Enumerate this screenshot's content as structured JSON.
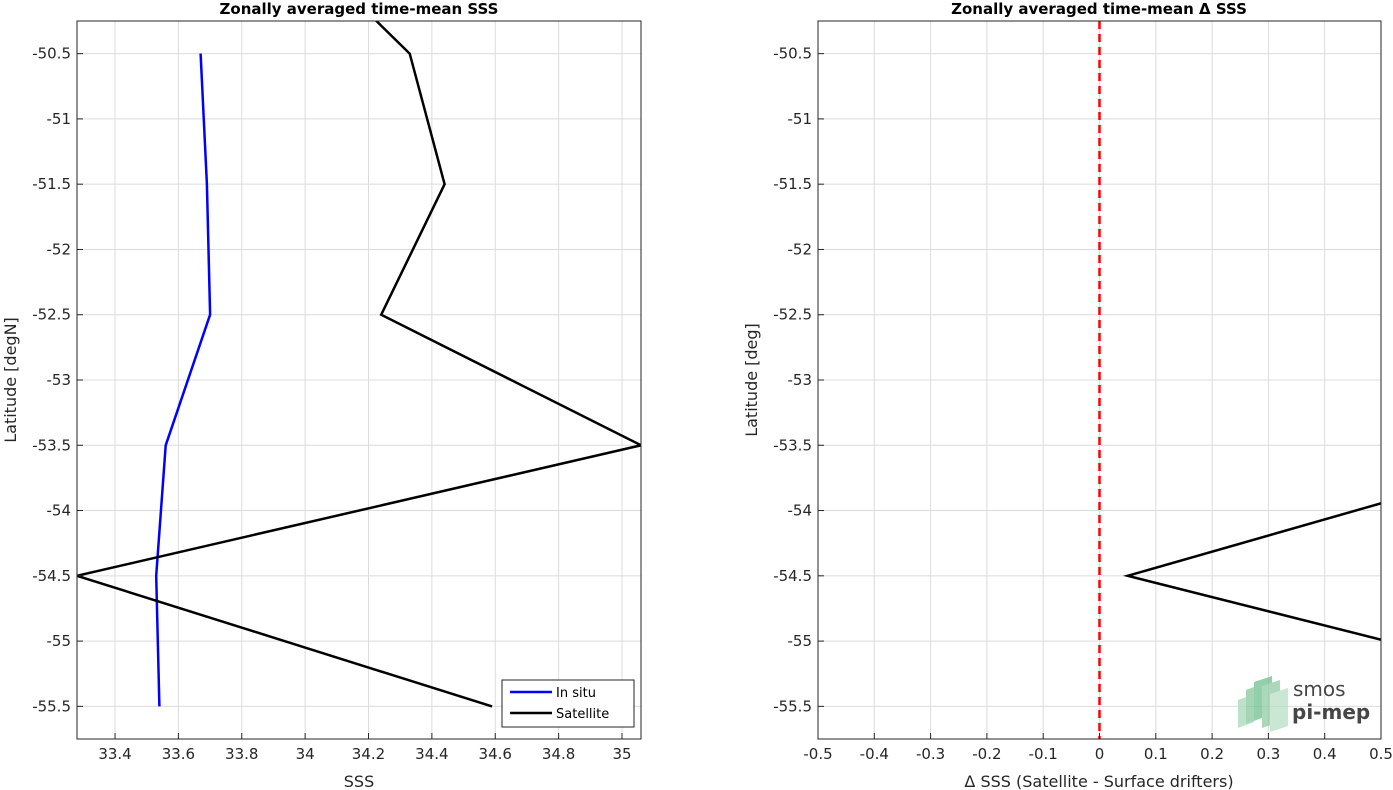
{
  "chart_data": [
    {
      "type": "line",
      "title": "Zonally averaged time-mean SSS",
      "xlabel": "SSS",
      "ylabel": "Latitude [degN]",
      "xlim": [
        33.28,
        35.06
      ],
      "ylim": [
        -55.75,
        -50.25
      ],
      "xticks": [
        33.4,
        33.6,
        33.8,
        34,
        34.2,
        34.4,
        34.6,
        34.8,
        35
      ],
      "xtick_labels": [
        "33.4",
        "33.6",
        "33.8",
        "34",
        "34.2",
        "34.4",
        "34.6",
        "34.8",
        "35"
      ],
      "yticks": [
        -50.5,
        -51,
        -51.5,
        -52,
        -52.5,
        -53,
        -53.5,
        -54,
        -54.5,
        -55,
        -55.5
      ],
      "ytick_labels": [
        "-50.5",
        "-51",
        "-51.5",
        "-52",
        "-52.5",
        "-53",
        "-53.5",
        "-54",
        "-54.5",
        "-55",
        "-55.5"
      ],
      "grid": true,
      "legend_position": "bottom-right",
      "series": [
        {
          "name": "In situ",
          "color": "#0000ff",
          "points": [
            {
              "x": 33.67,
              "y": -50.5
            },
            {
              "x": 33.69,
              "y": -51.5
            },
            {
              "x": 33.7,
              "y": -52.5
            },
            {
              "x": 33.56,
              "y": -53.5
            },
            {
              "x": 33.53,
              "y": -54.5
            },
            {
              "x": 33.54,
              "y": -55.5
            }
          ]
        },
        {
          "name": "Satellite",
          "color": "#000000",
          "points": [
            {
              "x": 34.12,
              "y": -50.0
            },
            {
              "x": 34.33,
              "y": -50.5
            },
            {
              "x": 34.44,
              "y": -51.5
            },
            {
              "x": 34.24,
              "y": -52.5
            },
            {
              "x": 35.06,
              "y": -53.5
            },
            {
              "x": 33.28,
              "y": -54.5
            },
            {
              "x": 34.59,
              "y": -55.5
            }
          ]
        }
      ]
    },
    {
      "type": "line",
      "title": "Zonally averaged time-mean Δ SSS",
      "xlabel": "Δ SSS (Satellite - Surface drifters)",
      "ylabel": "Latitude [deg]",
      "xlim": [
        -0.5,
        0.5
      ],
      "ylim": [
        -55.75,
        -50.25
      ],
      "xticks": [
        -0.5,
        -0.4,
        -0.3,
        -0.2,
        -0.1,
        0,
        0.1,
        0.2,
        0.3,
        0.4,
        0.5
      ],
      "xtick_labels": [
        "-0.5",
        "-0.4",
        "-0.3",
        "-0.2",
        "-0.1",
        "0",
        "0.1",
        "0.2",
        "0.3",
        "0.4",
        "0.5"
      ],
      "yticks": [
        -50.5,
        -51,
        -51.5,
        -52,
        -52.5,
        -53,
        -53.5,
        -54,
        -54.5,
        -55,
        -55.5
      ],
      "ytick_labels": [
        "-50.5",
        "-51",
        "-51.5",
        "-52",
        "-52.5",
        "-53",
        "-53.5",
        "-54",
        "-54.5",
        "-55",
        "-55.5"
      ],
      "grid": true,
      "reference_line": {
        "x": 0,
        "color": "#ff0000",
        "style": "dashed"
      },
      "series": [
        {
          "color": "#000000",
          "points": [
            {
              "x": 0.86,
              "y": -53.5
            },
            {
              "x": 0.05,
              "y": -54.5
            },
            {
              "x": 0.97,
              "y": -55.5
            }
          ]
        }
      ]
    }
  ],
  "logo": {
    "line1": "smos",
    "line2": "pi-mep",
    "color": "#6fbf8f"
  }
}
